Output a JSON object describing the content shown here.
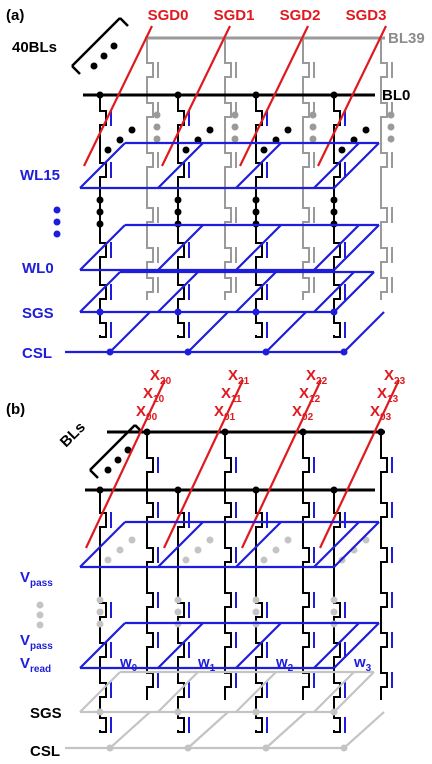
{
  "panel_a": {
    "label": "(a)",
    "sgd": [
      "SGD0",
      "SGD1",
      "SGD2",
      "SGD3"
    ],
    "bl_group": "40BLs",
    "bl_top": "BL39",
    "bl_bottom": "BL0",
    "wordlines": [
      "WL15",
      "WL0"
    ],
    "sgs": "SGS",
    "csl": "CSL"
  },
  "panel_b": {
    "label": "(b)",
    "x_labels": [
      [
        {
          "main": "X",
          "sub": "20"
        },
        {
          "main": "X",
          "sub": "10"
        },
        {
          "main": "X",
          "sub": "00"
        }
      ],
      [
        {
          "main": "X",
          "sub": "21"
        },
        {
          "main": "X",
          "sub": "11"
        },
        {
          "main": "X",
          "sub": "01"
        }
      ],
      [
        {
          "main": "X",
          "sub": "22"
        },
        {
          "main": "X",
          "sub": "12"
        },
        {
          "main": "X",
          "sub": "02"
        }
      ],
      [
        {
          "main": "X",
          "sub": "23"
        },
        {
          "main": "X",
          "sub": "13"
        },
        {
          "main": "X",
          "sub": "03"
        }
      ]
    ],
    "bl_group": "BLs",
    "row_labels": [
      {
        "main": "V",
        "sub": "pass"
      },
      {
        "main": "V",
        "sub": "pass"
      },
      {
        "main": "V",
        "sub": "read"
      }
    ],
    "weights": [
      {
        "main": "w",
        "sub": "0"
      },
      {
        "main": "w",
        "sub": "1"
      },
      {
        "main": "w",
        "sub": "2"
      },
      {
        "main": "w",
        "sub": "3"
      }
    ],
    "sgs": "SGS",
    "csl": "CSL"
  }
}
